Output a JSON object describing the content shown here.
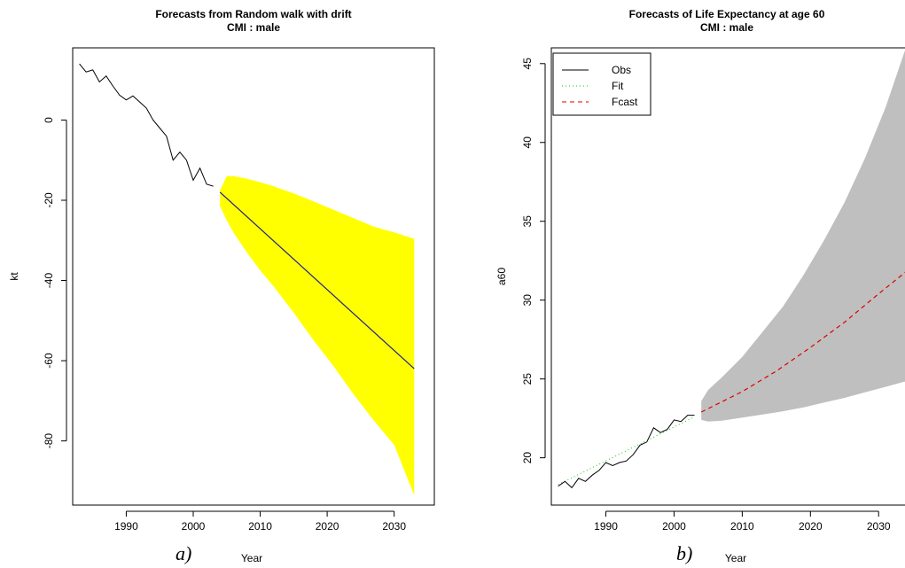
{
  "chart_data": [
    {
      "type": "line",
      "panel_label": "a)",
      "title": "Forecasts from Random walk with drift",
      "subtitle": "CMI : male",
      "xlabel": "Year",
      "ylabel": "kt",
      "xlim": [
        1982,
        2036
      ],
      "ylim": [
        -96,
        18
      ],
      "xticks": [
        1990,
        2000,
        2010,
        2020,
        2030
      ],
      "yticks": [
        0,
        -20,
        -40,
        -60,
        -80
      ],
      "grid": false,
      "colors": {
        "observed": "#000000",
        "forecast": "#1f1f8f",
        "interval": "#ffff00"
      },
      "series": [
        {
          "role": "observed",
          "x": [
            1983,
            1984,
            1985,
            1986,
            1987,
            1988,
            1989,
            1990,
            1991,
            1992,
            1993,
            1994,
            1995,
            1996,
            1997,
            1998,
            1999,
            2000,
            2001,
            2002,
            2003
          ],
          "values": [
            14,
            12,
            12.5,
            9.5,
            11,
            8.5,
            6.2,
            5,
            6,
            4.5,
            3,
            0,
            -2,
            -4,
            -10,
            -8,
            -10,
            -15,
            -12,
            -16,
            -16.5
          ]
        },
        {
          "role": "forecast",
          "x": [
            2004,
            2033
          ],
          "values": [
            -18,
            -62
          ]
        },
        {
          "role": "interval",
          "x": [
            2004,
            2005,
            2006,
            2008,
            2010,
            2012,
            2015,
            2018,
            2021,
            2024,
            2027,
            2030,
            2033
          ],
          "upper": [
            -17.5,
            -14,
            -14,
            -14.6,
            -15.5,
            -16.5,
            -18.3,
            -20.3,
            -22.4,
            -24.5,
            -26.6,
            -28,
            -29.6
          ],
          "lower": [
            -21.5,
            -25,
            -28,
            -33,
            -37.5,
            -41.5,
            -48,
            -55,
            -61.5,
            -68.5,
            -75,
            -81,
            -93.5
          ]
        }
      ]
    },
    {
      "type": "line",
      "panel_label": "b)",
      "title": "Forecasts of Life Expectancy at age 60",
      "subtitle": "CMI : male",
      "xlabel": "Year",
      "ylabel": "a60",
      "xlim": [
        1982,
        2034
      ],
      "ylim": [
        17.0,
        46.0
      ],
      "xticks": [
        1990,
        2000,
        2010,
        2020,
        2030
      ],
      "yticks": [
        20,
        25,
        30,
        35,
        40,
        45
      ],
      "grid": false,
      "legend_position": "top-left",
      "legend": [
        "Obs",
        "Fit",
        "Fcast"
      ],
      "colors": {
        "observed": "#000000",
        "fit": "#22bb22",
        "forecast": "#dd0000",
        "interval": "#bfbfbf"
      },
      "series": [
        {
          "role": "observed",
          "name": "Obs",
          "x": [
            1983,
            1984,
            1985,
            1986,
            1987,
            1988,
            1989,
            1990,
            1991,
            1992,
            1993,
            1994,
            1995,
            1996,
            1997,
            1998,
            1999,
            2000,
            2001,
            2002,
            2003
          ],
          "values": [
            18.2,
            18.5,
            18.1,
            18.7,
            18.5,
            18.9,
            19.2,
            19.7,
            19.5,
            19.7,
            19.8,
            20.2,
            20.8,
            21.0,
            21.9,
            21.6,
            21.8,
            22.4,
            22.3,
            22.7,
            22.7
          ]
        },
        {
          "role": "fit",
          "name": "Fit",
          "x": [
            1983,
            2003
          ],
          "values": [
            18.3,
            22.6
          ]
        },
        {
          "role": "forecast",
          "name": "Fcast",
          "x": [
            2004,
            2010,
            2015,
            2020,
            2025,
            2030,
            2034
          ],
          "values": [
            22.9,
            24.2,
            25.5,
            27.0,
            28.6,
            30.4,
            31.8
          ]
        },
        {
          "role": "interval",
          "x": [
            2004,
            2005,
            2007,
            2010,
            2013,
            2016,
            2019,
            2022,
            2025,
            2028,
            2031,
            2034
          ],
          "upper": [
            23.6,
            24.3,
            25.1,
            26.4,
            28.0,
            29.6,
            31.6,
            33.8,
            36.2,
            39.0,
            42.2,
            46.0
          ],
          "lower": [
            22.4,
            22.3,
            22.35,
            22.55,
            22.75,
            22.95,
            23.2,
            23.5,
            23.8,
            24.15,
            24.5,
            24.85
          ]
        }
      ]
    }
  ]
}
